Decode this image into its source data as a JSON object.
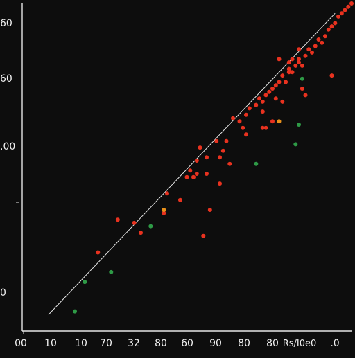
{
  "chart_data": {
    "type": "scatter",
    "title": "",
    "xlabel": "",
    "ylabel": "",
    "xlim": [
      0,
      100
    ],
    "ylim": [
      0,
      100
    ],
    "grid": false,
    "x_tick_labels": [
      "00",
      "10",
      "10",
      "70",
      "32",
      "80",
      "60",
      "90",
      "80",
      "80",
      "Rs/I0e0",
      ".0"
    ],
    "y_tick_labels": [
      "0",
      ".00",
      "60",
      "60"
    ],
    "colors": {
      "background": "#0d0d0d",
      "axis": "#e6e6e6",
      "fit_line": "#e8e8e8",
      "red": "#e8321f",
      "green": "#2e9a46",
      "orange": "#e8901a"
    },
    "fit_line": {
      "x": [
        8,
        95
      ],
      "y": [
        5,
        97
      ]
    },
    "series": [
      {
        "color": "red",
        "points": [
          [
            23,
            24
          ],
          [
            29,
            34
          ],
          [
            34,
            33
          ],
          [
            44,
            42
          ],
          [
            50,
            47
          ],
          [
            51,
            49
          ],
          [
            53,
            52
          ],
          [
            56,
            53
          ],
          [
            53,
            48
          ],
          [
            54,
            56
          ],
          [
            60,
            53
          ],
          [
            61,
            55
          ],
          [
            62,
            58
          ],
          [
            64,
            65
          ],
          [
            66,
            64
          ],
          [
            67,
            62
          ],
          [
            68,
            66
          ],
          [
            69,
            68
          ],
          [
            71,
            69
          ],
          [
            72,
            71
          ],
          [
            73,
            70
          ],
          [
            73,
            67
          ],
          [
            74,
            72
          ],
          [
            75,
            73
          ],
          [
            76,
            74
          ],
          [
            77,
            75
          ],
          [
            77,
            71
          ],
          [
            78,
            76
          ],
          [
            79,
            78
          ],
          [
            80,
            76
          ],
          [
            81,
            80
          ],
          [
            81,
            82
          ],
          [
            82,
            79
          ],
          [
            83,
            81
          ],
          [
            84,
            83
          ],
          [
            85,
            81
          ],
          [
            86,
            84
          ],
          [
            87,
            86
          ],
          [
            88,
            85
          ],
          [
            89,
            87
          ],
          [
            90,
            89
          ],
          [
            91,
            88
          ],
          [
            92,
            90
          ],
          [
            93,
            92
          ],
          [
            94,
            93
          ],
          [
            95,
            94
          ],
          [
            96,
            96
          ],
          [
            97,
            97
          ],
          [
            98,
            98
          ],
          [
            99,
            99
          ],
          [
            100,
            100
          ],
          [
            57,
            37
          ],
          [
            56,
            48
          ],
          [
            63,
            51
          ],
          [
            68,
            60
          ],
          [
            73,
            62
          ],
          [
            79,
            70
          ],
          [
            80,
            76
          ],
          [
            84,
            82
          ],
          [
            85,
            74
          ],
          [
            86,
            72
          ],
          [
            82,
            83
          ],
          [
            84,
            86
          ],
          [
            94,
            78
          ],
          [
            78,
            83
          ],
          [
            81,
            79
          ],
          [
            76,
            64
          ],
          [
            43,
            36
          ],
          [
            48,
            40
          ],
          [
            52,
            47
          ],
          [
            59,
            58
          ],
          [
            60,
            45
          ],
          [
            36,
            30
          ],
          [
            55,
            29
          ],
          [
            74,
            62
          ]
        ]
      },
      {
        "color": "green",
        "points": [
          [
            16,
            6
          ],
          [
            19,
            15
          ],
          [
            27,
            18
          ],
          [
            39,
            32
          ],
          [
            71,
            51
          ],
          [
            83,
            57
          ],
          [
            84,
            63
          ],
          [
            85,
            77
          ]
        ]
      },
      {
        "color": "orange",
        "points": [
          [
            43,
            37
          ],
          [
            78,
            64
          ]
        ]
      }
    ]
  }
}
